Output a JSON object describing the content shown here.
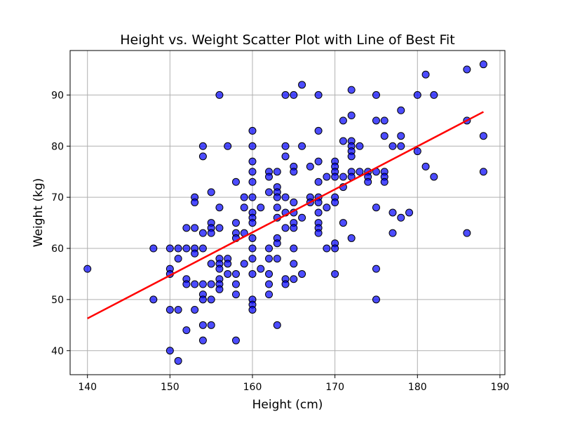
{
  "chart_data": {
    "type": "scatter",
    "title": "Height vs. Weight Scatter Plot with Line of Best Fit",
    "xlabel": "Height (cm)",
    "ylabel": "Weight (kg)",
    "xlim": [
      137.9,
      190.6
    ],
    "ylim": [
      35.3,
      98.7
    ],
    "xticks": [
      140,
      150,
      160,
      170,
      180,
      190
    ],
    "yticks": [
      40,
      50,
      60,
      70,
      80,
      90
    ],
    "grid": true,
    "point_color": "#0000ff",
    "point_edge_color": "#000000",
    "line_color": "#ff0000",
    "points": [
      [
        140,
        56
      ],
      [
        148,
        60
      ],
      [
        148,
        50
      ],
      [
        150,
        60
      ],
      [
        150,
        56
      ],
      [
        150,
        55
      ],
      [
        150,
        48
      ],
      [
        150,
        40
      ],
      [
        151,
        60
      ],
      [
        151,
        58
      ],
      [
        151,
        48
      ],
      [
        151,
        38
      ],
      [
        152,
        64
      ],
      [
        152,
        60
      ],
      [
        152,
        54
      ],
      [
        152,
        53
      ],
      [
        152,
        44
      ],
      [
        153,
        70
      ],
      [
        153,
        69
      ],
      [
        153,
        64
      ],
      [
        153,
        60
      ],
      [
        153,
        59
      ],
      [
        153,
        53
      ],
      [
        153,
        48
      ],
      [
        154,
        80
      ],
      [
        154,
        78
      ],
      [
        154,
        63
      ],
      [
        154,
        60
      ],
      [
        154,
        53
      ],
      [
        154,
        51
      ],
      [
        154,
        50
      ],
      [
        154,
        45
      ],
      [
        154,
        42
      ],
      [
        155,
        71
      ],
      [
        155,
        65
      ],
      [
        155,
        64
      ],
      [
        155,
        63
      ],
      [
        155,
        57
      ],
      [
        155,
        53
      ],
      [
        155,
        50
      ],
      [
        155,
        45
      ],
      [
        156,
        90
      ],
      [
        156,
        68
      ],
      [
        156,
        64
      ],
      [
        156,
        58
      ],
      [
        156,
        57
      ],
      [
        156,
        56
      ],
      [
        156,
        54
      ],
      [
        156,
        53
      ],
      [
        156,
        52
      ],
      [
        157,
        80
      ],
      [
        157,
        58
      ],
      [
        157,
        57
      ],
      [
        157,
        55
      ],
      [
        158,
        73
      ],
      [
        158,
        65
      ],
      [
        158,
        63
      ],
      [
        158,
        62
      ],
      [
        158,
        55
      ],
      [
        158,
        53
      ],
      [
        158,
        51
      ],
      [
        158,
        42
      ],
      [
        159,
        70
      ],
      [
        159,
        68
      ],
      [
        159,
        63
      ],
      [
        159,
        57
      ],
      [
        160,
        83
      ],
      [
        160,
        80
      ],
      [
        160,
        77
      ],
      [
        160,
        75
      ],
      [
        160,
        73
      ],
      [
        160,
        70
      ],
      [
        160,
        67
      ],
      [
        160,
        66
      ],
      [
        160,
        65
      ],
      [
        160,
        62
      ],
      [
        160,
        60
      ],
      [
        160,
        58
      ],
      [
        160,
        55
      ],
      [
        160,
        50
      ],
      [
        160,
        49
      ],
      [
        160,
        48
      ],
      [
        161,
        68
      ],
      [
        161,
        56
      ],
      [
        162,
        75
      ],
      [
        162,
        74
      ],
      [
        162,
        71
      ],
      [
        162,
        60
      ],
      [
        162,
        58
      ],
      [
        162,
        55
      ],
      [
        162,
        53
      ],
      [
        162,
        51
      ],
      [
        163,
        75
      ],
      [
        163,
        72
      ],
      [
        163,
        71
      ],
      [
        163,
        70
      ],
      [
        163,
        68
      ],
      [
        163,
        66
      ],
      [
        163,
        62
      ],
      [
        163,
        61
      ],
      [
        163,
        58
      ],
      [
        163,
        45
      ],
      [
        164,
        90
      ],
      [
        164,
        80
      ],
      [
        164,
        78
      ],
      [
        164,
        70
      ],
      [
        164,
        67
      ],
      [
        164,
        64
      ],
      [
        164,
        54
      ],
      [
        164,
        53
      ],
      [
        165,
        90
      ],
      [
        165,
        76
      ],
      [
        165,
        75
      ],
      [
        165,
        69
      ],
      [
        165,
        67
      ],
      [
        165,
        65
      ],
      [
        165,
        64
      ],
      [
        165,
        60
      ],
      [
        165,
        57
      ],
      [
        165,
        54
      ],
      [
        166,
        92
      ],
      [
        166,
        80
      ],
      [
        166,
        66
      ],
      [
        166,
        55
      ],
      [
        167,
        76
      ],
      [
        167,
        70
      ],
      [
        167,
        69
      ],
      [
        168,
        90
      ],
      [
        168,
        83
      ],
      [
        168,
        77
      ],
      [
        168,
        73
      ],
      [
        168,
        70
      ],
      [
        168,
        69
      ],
      [
        168,
        67
      ],
      [
        168,
        65
      ],
      [
        168,
        64
      ],
      [
        168,
        63
      ],
      [
        169,
        74
      ],
      [
        169,
        68
      ],
      [
        169,
        60
      ],
      [
        170,
        77
      ],
      [
        170,
        76
      ],
      [
        170,
        75
      ],
      [
        170,
        74
      ],
      [
        170,
        70
      ],
      [
        170,
        69
      ],
      [
        170,
        61
      ],
      [
        170,
        60
      ],
      [
        170,
        55
      ],
      [
        171,
        85
      ],
      [
        171,
        81
      ],
      [
        171,
        74
      ],
      [
        171,
        72
      ],
      [
        171,
        65
      ],
      [
        172,
        91
      ],
      [
        172,
        86
      ],
      [
        172,
        81
      ],
      [
        172,
        80
      ],
      [
        172,
        79
      ],
      [
        172,
        78
      ],
      [
        172,
        75
      ],
      [
        172,
        74
      ],
      [
        172,
        62
      ],
      [
        173,
        80
      ],
      [
        173,
        75
      ],
      [
        174,
        75
      ],
      [
        174,
        74
      ],
      [
        174,
        73
      ],
      [
        175,
        90
      ],
      [
        175,
        85
      ],
      [
        175,
        75
      ],
      [
        175,
        68
      ],
      [
        175,
        56
      ],
      [
        175,
        50
      ],
      [
        176,
        85
      ],
      [
        176,
        82
      ],
      [
        176,
        75
      ],
      [
        176,
        74
      ],
      [
        176,
        73
      ],
      [
        177,
        80
      ],
      [
        177,
        67
      ],
      [
        177,
        63
      ],
      [
        178,
        87
      ],
      [
        178,
        82
      ],
      [
        178,
        80
      ],
      [
        178,
        66
      ],
      [
        179,
        67
      ],
      [
        180,
        90
      ],
      [
        180,
        79
      ],
      [
        181,
        94
      ],
      [
        181,
        76
      ],
      [
        182,
        90
      ],
      [
        182,
        74
      ],
      [
        186,
        95
      ],
      [
        186,
        85
      ],
      [
        186,
        63
      ],
      [
        188,
        96
      ],
      [
        188,
        82
      ],
      [
        188,
        75
      ]
    ],
    "best_fit_line": {
      "x": [
        140,
        188
      ],
      "y": [
        46.3,
        86.7
      ]
    }
  }
}
